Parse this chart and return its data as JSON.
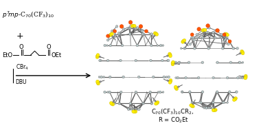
{
  "title_text": "$p^7\\!mp$-C$_{70}$(CF$_3$)$_{10}$",
  "malonate_left": "EtO",
  "malonate_right": "OEt",
  "condition_line": "CBr$_4$",
  "condition_line2": "DBU",
  "product_line1": "C$_{70}$(CF$_3$)$_{10}$CR$_2$,",
  "product_line2": "R = CO$_2$Et",
  "bg_color": "#ffffff",
  "text_color": "#000000",
  "cage_bond_color": "#808080",
  "cage_node_color": "#b8c8c8",
  "cage_node_edge": "#707070",
  "yellow_color": "#ffee00",
  "yellow_edge": "#ccbb00",
  "orange_color": "#ff5500",
  "orange_edge": "#cc3300",
  "cf3_stem_color": "#444444",
  "cf3_c_color": "#909090"
}
